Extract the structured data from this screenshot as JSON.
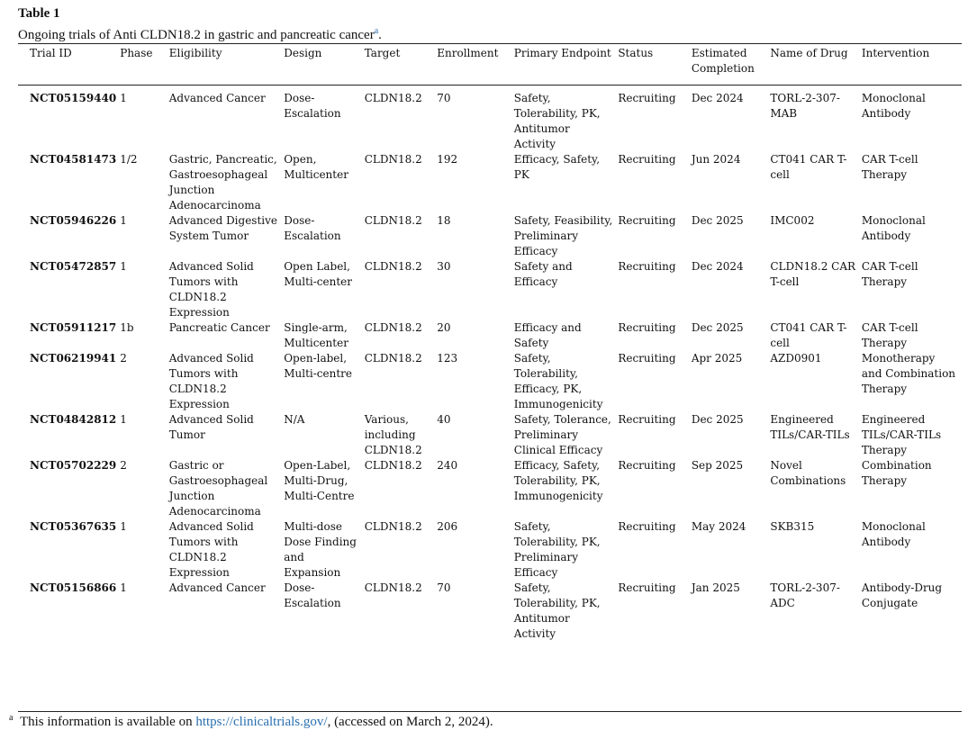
{
  "table_label": "Table 1",
  "caption_text": "Ongoing trials of Anti CLDN18.2 in gastric and pancreatic cancer",
  "caption_mark": "a",
  "caption_end": ".",
  "headers": [
    "Trial ID",
    "Phase",
    "Eligibility",
    "Design",
    "Target",
    "Enrollment",
    "Primary Endpoint",
    "Status",
    "Estimated Completion",
    "Name of Drug",
    "Intervention"
  ],
  "rows": [
    [
      "NCT05159440",
      "1",
      "Advanced Cancer",
      "Dose-Escalation",
      "CLDN18.2",
      "70",
      "Safety, Tolerability, PK, Antitumor Activity",
      "Recruiting",
      "Dec 2024",
      "TORL-2-307-MAB",
      "Monoclonal Antibody"
    ],
    [
      "NCT04581473",
      "1/2",
      "Gastric, Pancreatic, Gastroesophageal Junction Adenocarcinoma",
      "Open, Multicenter",
      "CLDN18.2",
      "192",
      "Efficacy, Safety, PK",
      "Recruiting",
      "Jun 2024",
      "CT041 CAR T-cell",
      "CAR T-cell Therapy"
    ],
    [
      "NCT05946226",
      "1",
      "Advanced Digestive System Tumor",
      "Dose-Escalation",
      "CLDN18.2",
      "18",
      "Safety, Feasibility, Preliminary Efficacy",
      "Recruiting",
      "Dec 2025",
      "IMC002",
      "Monoclonal Antibody"
    ],
    [
      "NCT05472857",
      "1",
      "Advanced Solid Tumors with CLDN18.2 Expression",
      "Open Label, Multi-center",
      "CLDN18.2",
      "30",
      "Safety and Efficacy",
      "Recruiting",
      "Dec 2024",
      "CLDN18.2 CAR T-cell",
      "CAR T-cell Therapy"
    ],
    [
      "NCT05911217",
      "1b",
      "Pancreatic Cancer",
      "Single-arm, Multicenter",
      "CLDN18.2",
      "20",
      "Efficacy and Safety",
      "Recruiting",
      "Dec 2025",
      "CT041 CAR T-cell",
      "CAR T-cell Therapy"
    ],
    [
      "NCT06219941",
      "2",
      "Advanced Solid Tumors with CLDN18.2 Expression",
      "Open-label, Multi-centre",
      "CLDN18.2",
      "123",
      "Safety, Tolerability, Efficacy, PK, Immunogenicity",
      "Recruiting",
      "Apr 2025",
      "AZD0901",
      "Monotherapy and Combination Therapy"
    ],
    [
      "NCT04842812",
      "1",
      "Advanced Solid Tumor",
      "N/A",
      "Various, including CLDN18.2",
      "40",
      "Safety, Tolerance, Preliminary Clinical Efficacy",
      "Recruiting",
      "Dec 2025",
      "Engineered TILs/CAR-TILs",
      "Engineered TILs/CAR-TILs Therapy"
    ],
    [
      "NCT05702229",
      "2",
      "Gastric or Gastroesophageal Junction Adenocarcinoma",
      "Open-Label, Multi-Drug, Multi-Centre",
      "CLDN18.2",
      "240",
      "Efficacy, Safety, Tolerability, PK, Immunogenicity",
      "Recruiting",
      "Sep 2025",
      "Novel Combinations",
      "Combination Therapy"
    ],
    [
      "NCT05367635",
      "1",
      "Advanced Solid Tumors with CLDN18.2 Expression",
      "Multi-dose Dose Finding and Expansion",
      "CLDN18.2",
      "206",
      "Safety, Tolerability, PK, Preliminary Efficacy",
      "Recruiting",
      "May 2024",
      "SKB315",
      "Monoclonal Antibody"
    ],
    [
      "NCT05156866",
      "1",
      "Advanced Cancer",
      "Dose-Escalation",
      "CLDN18.2",
      "70",
      "Safety, Tolerability, PK, Antitumor Activity",
      "Recruiting",
      "Jan 2025",
      "TORL-2-307-ADC",
      "Antibody-Drug Conjugate"
    ]
  ],
  "footnote": {
    "mark": "a",
    "prefix": "This information is available on ",
    "link": "https://clinicaltrials.gov/",
    "suffix": ", (accessed on March 2, 2024)."
  }
}
